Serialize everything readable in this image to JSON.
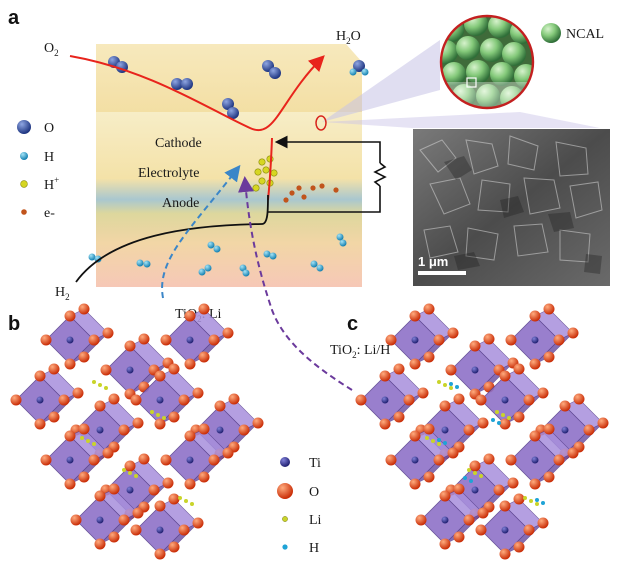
{
  "panels": {
    "a": "a",
    "b": "b",
    "c": "c"
  },
  "panel_a": {
    "o2_label": "O",
    "o2_sub": "2",
    "h2o_label": "H",
    "h2o_sub": "2",
    "h2o_tail": "O",
    "h2_label": "H",
    "h2_sub": "2",
    "layers": {
      "cathode": "Cathode",
      "electrolyte": "Electrolyte",
      "anode": "Anode"
    },
    "legend": [
      {
        "symbol": "oxygen",
        "text": "O",
        "sup": ""
      },
      {
        "symbol": "hydrogen",
        "text": "H",
        "sup": ""
      },
      {
        "symbol": "proton",
        "text": "H",
        "sup": "+"
      },
      {
        "symbol": "electron",
        "text": "e-",
        "sup": ""
      }
    ],
    "ncal_label": "NCAL",
    "scale_bar": "1 μm",
    "tio2_li": {
      "pre": "TiO",
      "sub": "2",
      "post": ": Li"
    },
    "tio2_lih": {
      "pre": "TiO",
      "sub": "2",
      "post": ": Li/H"
    }
  },
  "legend_bc": [
    {
      "symbol": "titanium",
      "text": "Ti"
    },
    {
      "symbol": "oxygen",
      "text": "O"
    },
    {
      "symbol": "lithium",
      "text": "Li"
    },
    {
      "symbol": "hydrogen",
      "text": "H"
    }
  ],
  "colors": {
    "oxygen": "#2a4a9c",
    "hydrogen": "#1fa3d6",
    "proton": "#d6d622",
    "electron": "#c1541c",
    "titanium": "#3a3a9a",
    "crystal_oxygen": "#e04418",
    "lithium": "#c9d42a",
    "ncal": "#8ad08a",
    "path_red": "#e8241c",
    "dash_blue": "#3b86c8",
    "dash_purple": "#6b3a9c"
  }
}
